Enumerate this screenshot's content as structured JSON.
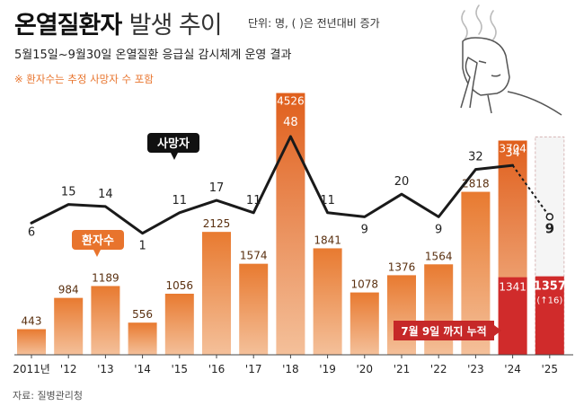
{
  "header": {
    "title_bold": "온열질환자",
    "title_light": "발생 추이",
    "unit_note": "단위: 명, ( )은 전년대비 증가",
    "subtitle": "5월15일~9월30일 온열질환 응급실 감시체계 운영 결과",
    "footnote": "※ 환자수는 추정 사망자 수 포함"
  },
  "source": "자료: 질병관리청",
  "colors": {
    "bar_light": "#f4c09a",
    "bar_dark": "#e87a30",
    "highlight_bar": "#e05f1c",
    "partial_bar": "#d02b2b",
    "line": "#1a1a1a",
    "callout_orange": "#e8742d",
    "callout_red": "#c62828",
    "footnote": "#e8742d"
  },
  "illustration": {
    "icon": "overheated-person-icon"
  },
  "chart_data": {
    "type": "bar+line",
    "categories": [
      "2011년",
      "'12",
      "'13",
      "'14",
      "'15",
      "'16",
      "'17",
      "'18",
      "'19",
      "'20",
      "'21",
      "'22",
      "'23",
      "'24",
      "'25"
    ],
    "series": [
      {
        "name": "환자수",
        "type": "bar",
        "values": [
          443,
          984,
          1189,
          556,
          1056,
          2125,
          1574,
          4526,
          1841,
          1078,
          1376,
          1564,
          2818,
          3704,
          null
        ],
        "labels": [
          "443",
          "984",
          "1189",
          "556",
          "1056",
          "2125",
          "1574",
          "4526",
          "1841",
          "1078",
          "1376",
          "1564",
          "2818",
          "3704",
          ""
        ]
      },
      {
        "name": "사망자",
        "type": "line",
        "values": [
          6,
          15,
          14,
          1,
          11,
          17,
          11,
          48,
          11,
          9,
          20,
          9,
          32,
          34,
          9
        ],
        "labels": [
          "6",
          "15",
          "14",
          "1",
          "11",
          "17",
          "11",
          "48",
          "11",
          "9",
          "20",
          "9",
          "32",
          "34",
          "9"
        ]
      }
    ],
    "partial": {
      "label": "7월 9일 까지 누적",
      "values_2024": "1341",
      "values_2025": "1357",
      "change_2025": "(↑16)",
      "value_2024": 1341,
      "value_2025": 1357
    },
    "callouts": {
      "bars": "환자수",
      "line": "사망자"
    },
    "ylim_bars": [
      0,
      4700
    ],
    "ylim_line": [
      0,
      60
    ]
  }
}
